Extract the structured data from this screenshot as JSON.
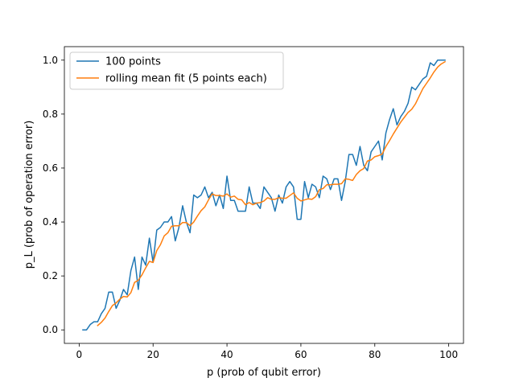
{
  "chart_data": {
    "type": "line",
    "title": "",
    "xlabel": "p (prob of qubit error)",
    "ylabel": "p_L (prob of operation error)",
    "xlim": [
      -4,
      104
    ],
    "ylim": [
      -0.05,
      1.05
    ],
    "x_ticks": [
      0,
      20,
      40,
      60,
      80,
      100
    ],
    "y_ticks": [
      0.0,
      0.2,
      0.4,
      0.6,
      0.8,
      1.0
    ],
    "x_tick_labels": [
      "0",
      "20",
      "40",
      "60",
      "80",
      "100"
    ],
    "y_tick_labels": [
      "0.0",
      "0.2",
      "0.4",
      "0.6",
      "0.8",
      "1.0"
    ],
    "grid": false,
    "legend_position": "top-left",
    "series": [
      {
        "name": "100 points",
        "color": "#1f77b4",
        "x": [
          1,
          2,
          3,
          4,
          5,
          6,
          7,
          8,
          9,
          10,
          11,
          12,
          13,
          14,
          15,
          16,
          17,
          18,
          19,
          20,
          21,
          22,
          23,
          24,
          25,
          26,
          27,
          28,
          29,
          30,
          31,
          32,
          33,
          34,
          35,
          36,
          37,
          38,
          39,
          40,
          41,
          42,
          43,
          44,
          45,
          46,
          47,
          48,
          49,
          50,
          51,
          52,
          53,
          54,
          55,
          56,
          57,
          58,
          59,
          60,
          61,
          62,
          63,
          64,
          65,
          66,
          67,
          68,
          69,
          70,
          71,
          72,
          73,
          74,
          75,
          76,
          77,
          78,
          79,
          80,
          81,
          82,
          83,
          84,
          85,
          86,
          87,
          88,
          89,
          90,
          91,
          92,
          93,
          94,
          95,
          96,
          97,
          98,
          99
        ],
        "values": [
          0.0,
          0.0,
          0.02,
          0.03,
          0.03,
          0.06,
          0.08,
          0.14,
          0.14,
          0.08,
          0.11,
          0.15,
          0.13,
          0.22,
          0.27,
          0.15,
          0.27,
          0.24,
          0.34,
          0.25,
          0.37,
          0.38,
          0.4,
          0.4,
          0.42,
          0.33,
          0.38,
          0.46,
          0.4,
          0.36,
          0.5,
          0.49,
          0.5,
          0.53,
          0.49,
          0.51,
          0.46,
          0.5,
          0.45,
          0.57,
          0.48,
          0.48,
          0.44,
          0.44,
          0.44,
          0.53,
          0.47,
          0.47,
          0.45,
          0.53,
          0.51,
          0.49,
          0.44,
          0.5,
          0.47,
          0.53,
          0.55,
          0.53,
          0.41,
          0.41,
          0.55,
          0.49,
          0.54,
          0.53,
          0.49,
          0.57,
          0.56,
          0.52,
          0.56,
          0.56,
          0.48,
          0.55,
          0.65,
          0.65,
          0.61,
          0.68,
          0.61,
          0.59,
          0.66,
          0.68,
          0.7,
          0.63,
          0.73,
          0.78,
          0.82,
          0.76,
          0.79,
          0.81,
          0.84,
          0.9,
          0.89,
          0.91,
          0.93,
          0.94,
          0.99,
          0.98,
          1.0,
          1.0,
          1.0
        ]
      },
      {
        "name": "rolling mean fit (5 points each)",
        "color": "#ff7f0e",
        "x": [
          5,
          6,
          7,
          8,
          9,
          10,
          11,
          12,
          13,
          14,
          15,
          16,
          17,
          18,
          19,
          20,
          21,
          22,
          23,
          24,
          25,
          26,
          27,
          28,
          29,
          30,
          31,
          32,
          33,
          34,
          35,
          36,
          37,
          38,
          39,
          40,
          41,
          42,
          43,
          44,
          45,
          46,
          47,
          48,
          49,
          50,
          51,
          52,
          53,
          54,
          55,
          56,
          57,
          58,
          59,
          60,
          61,
          62,
          63,
          64,
          65,
          66,
          67,
          68,
          69,
          70,
          71,
          72,
          73,
          74,
          75,
          76,
          77,
          78,
          79,
          80,
          81,
          82,
          83,
          84,
          85,
          86,
          87,
          88,
          89,
          90,
          91,
          92,
          93,
          94,
          95,
          96,
          97,
          98,
          99
        ],
        "values": [
          0.016,
          0.028,
          0.044,
          0.068,
          0.09,
          0.1,
          0.114,
          0.124,
          0.122,
          0.138,
          0.176,
          0.184,
          0.204,
          0.23,
          0.254,
          0.25,
          0.294,
          0.316,
          0.348,
          0.36,
          0.384,
          0.386,
          0.386,
          0.398,
          0.398,
          0.386,
          0.4,
          0.422,
          0.442,
          0.456,
          0.482,
          0.504,
          0.498,
          0.498,
          0.496,
          0.504,
          0.492,
          0.496,
          0.484,
          0.482,
          0.464,
          0.472,
          0.464,
          0.47,
          0.472,
          0.478,
          0.49,
          0.484,
          0.484,
          0.49,
          0.488,
          0.488,
          0.498,
          0.508,
          0.488,
          0.478,
          0.482,
          0.486,
          0.484,
          0.494,
          0.52,
          0.524,
          0.538,
          0.538,
          0.54,
          0.54,
          0.542,
          0.56,
          0.558,
          0.554,
          0.576,
          0.59,
          0.598,
          0.626,
          0.63,
          0.642,
          0.646,
          0.652,
          0.68,
          0.702,
          0.726,
          0.748,
          0.77,
          0.788,
          0.806,
          0.818,
          0.838,
          0.866,
          0.894,
          0.914,
          0.934,
          0.956,
          0.974,
          0.986,
          0.994
        ]
      }
    ]
  }
}
